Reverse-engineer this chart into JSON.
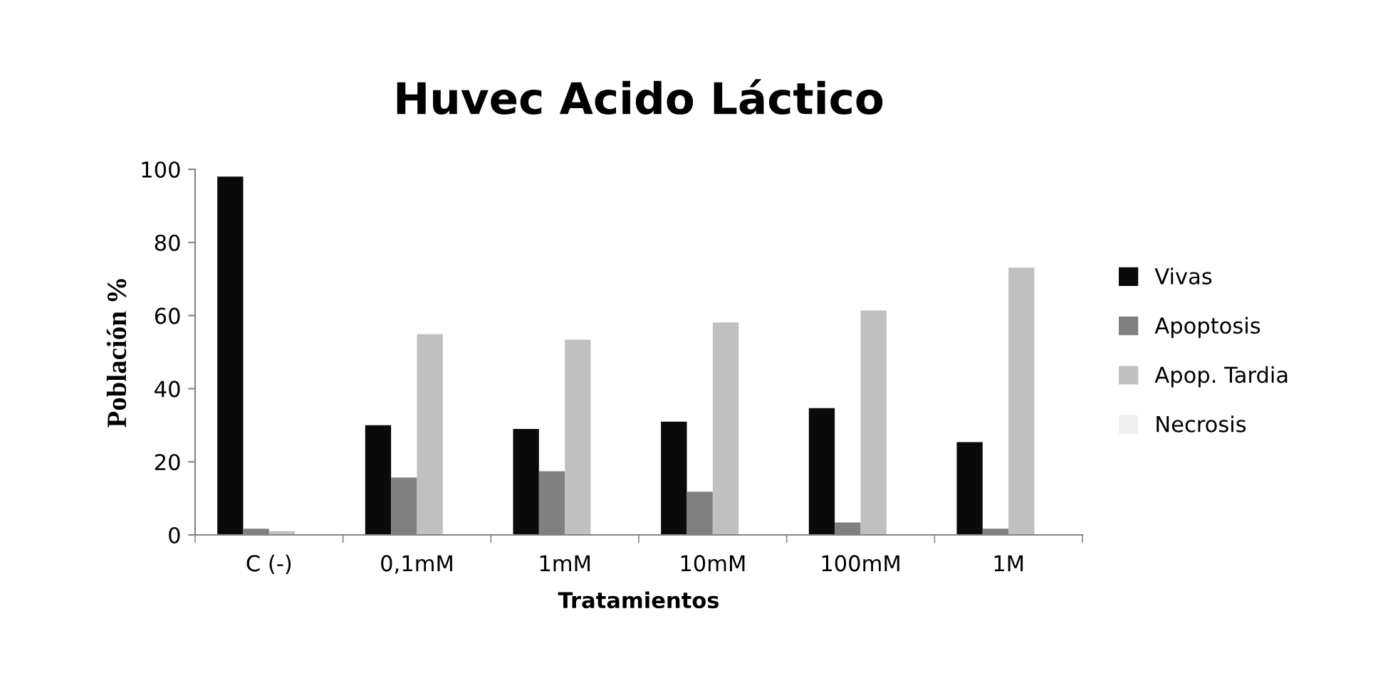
{
  "chart_data": {
    "type": "bar",
    "title": "Huvec Acido Láctico",
    "xlabel": "Tratamientos",
    "ylabel": "Población %",
    "categories": [
      "C (-)",
      "0,1mM",
      "1mM",
      "10mM",
      "100mM",
      "1M"
    ],
    "series": [
      {
        "name": "Vivas",
        "color": "#0a0a0a",
        "values": [
          98,
          30,
          29,
          31,
          34.7,
          25.4
        ]
      },
      {
        "name": "Apoptosis",
        "color": "#808080",
        "values": [
          1.7,
          15.7,
          17.4,
          11.8,
          3.4,
          1.7
        ]
      },
      {
        "name": "Apop. Tardia",
        "color": "#c0c0c0",
        "values": [
          1,
          54.9,
          53.4,
          58.1,
          61.4,
          73.1
        ]
      },
      {
        "name": "Necrosis",
        "color": "#f0f0f0",
        "values": [
          null,
          null,
          null,
          null,
          null,
          null
        ]
      }
    ],
    "ylim": [
      0,
      100
    ],
    "yticks": [
      0,
      20,
      40,
      60,
      80,
      100
    ],
    "grid": false,
    "legend": "right"
  }
}
